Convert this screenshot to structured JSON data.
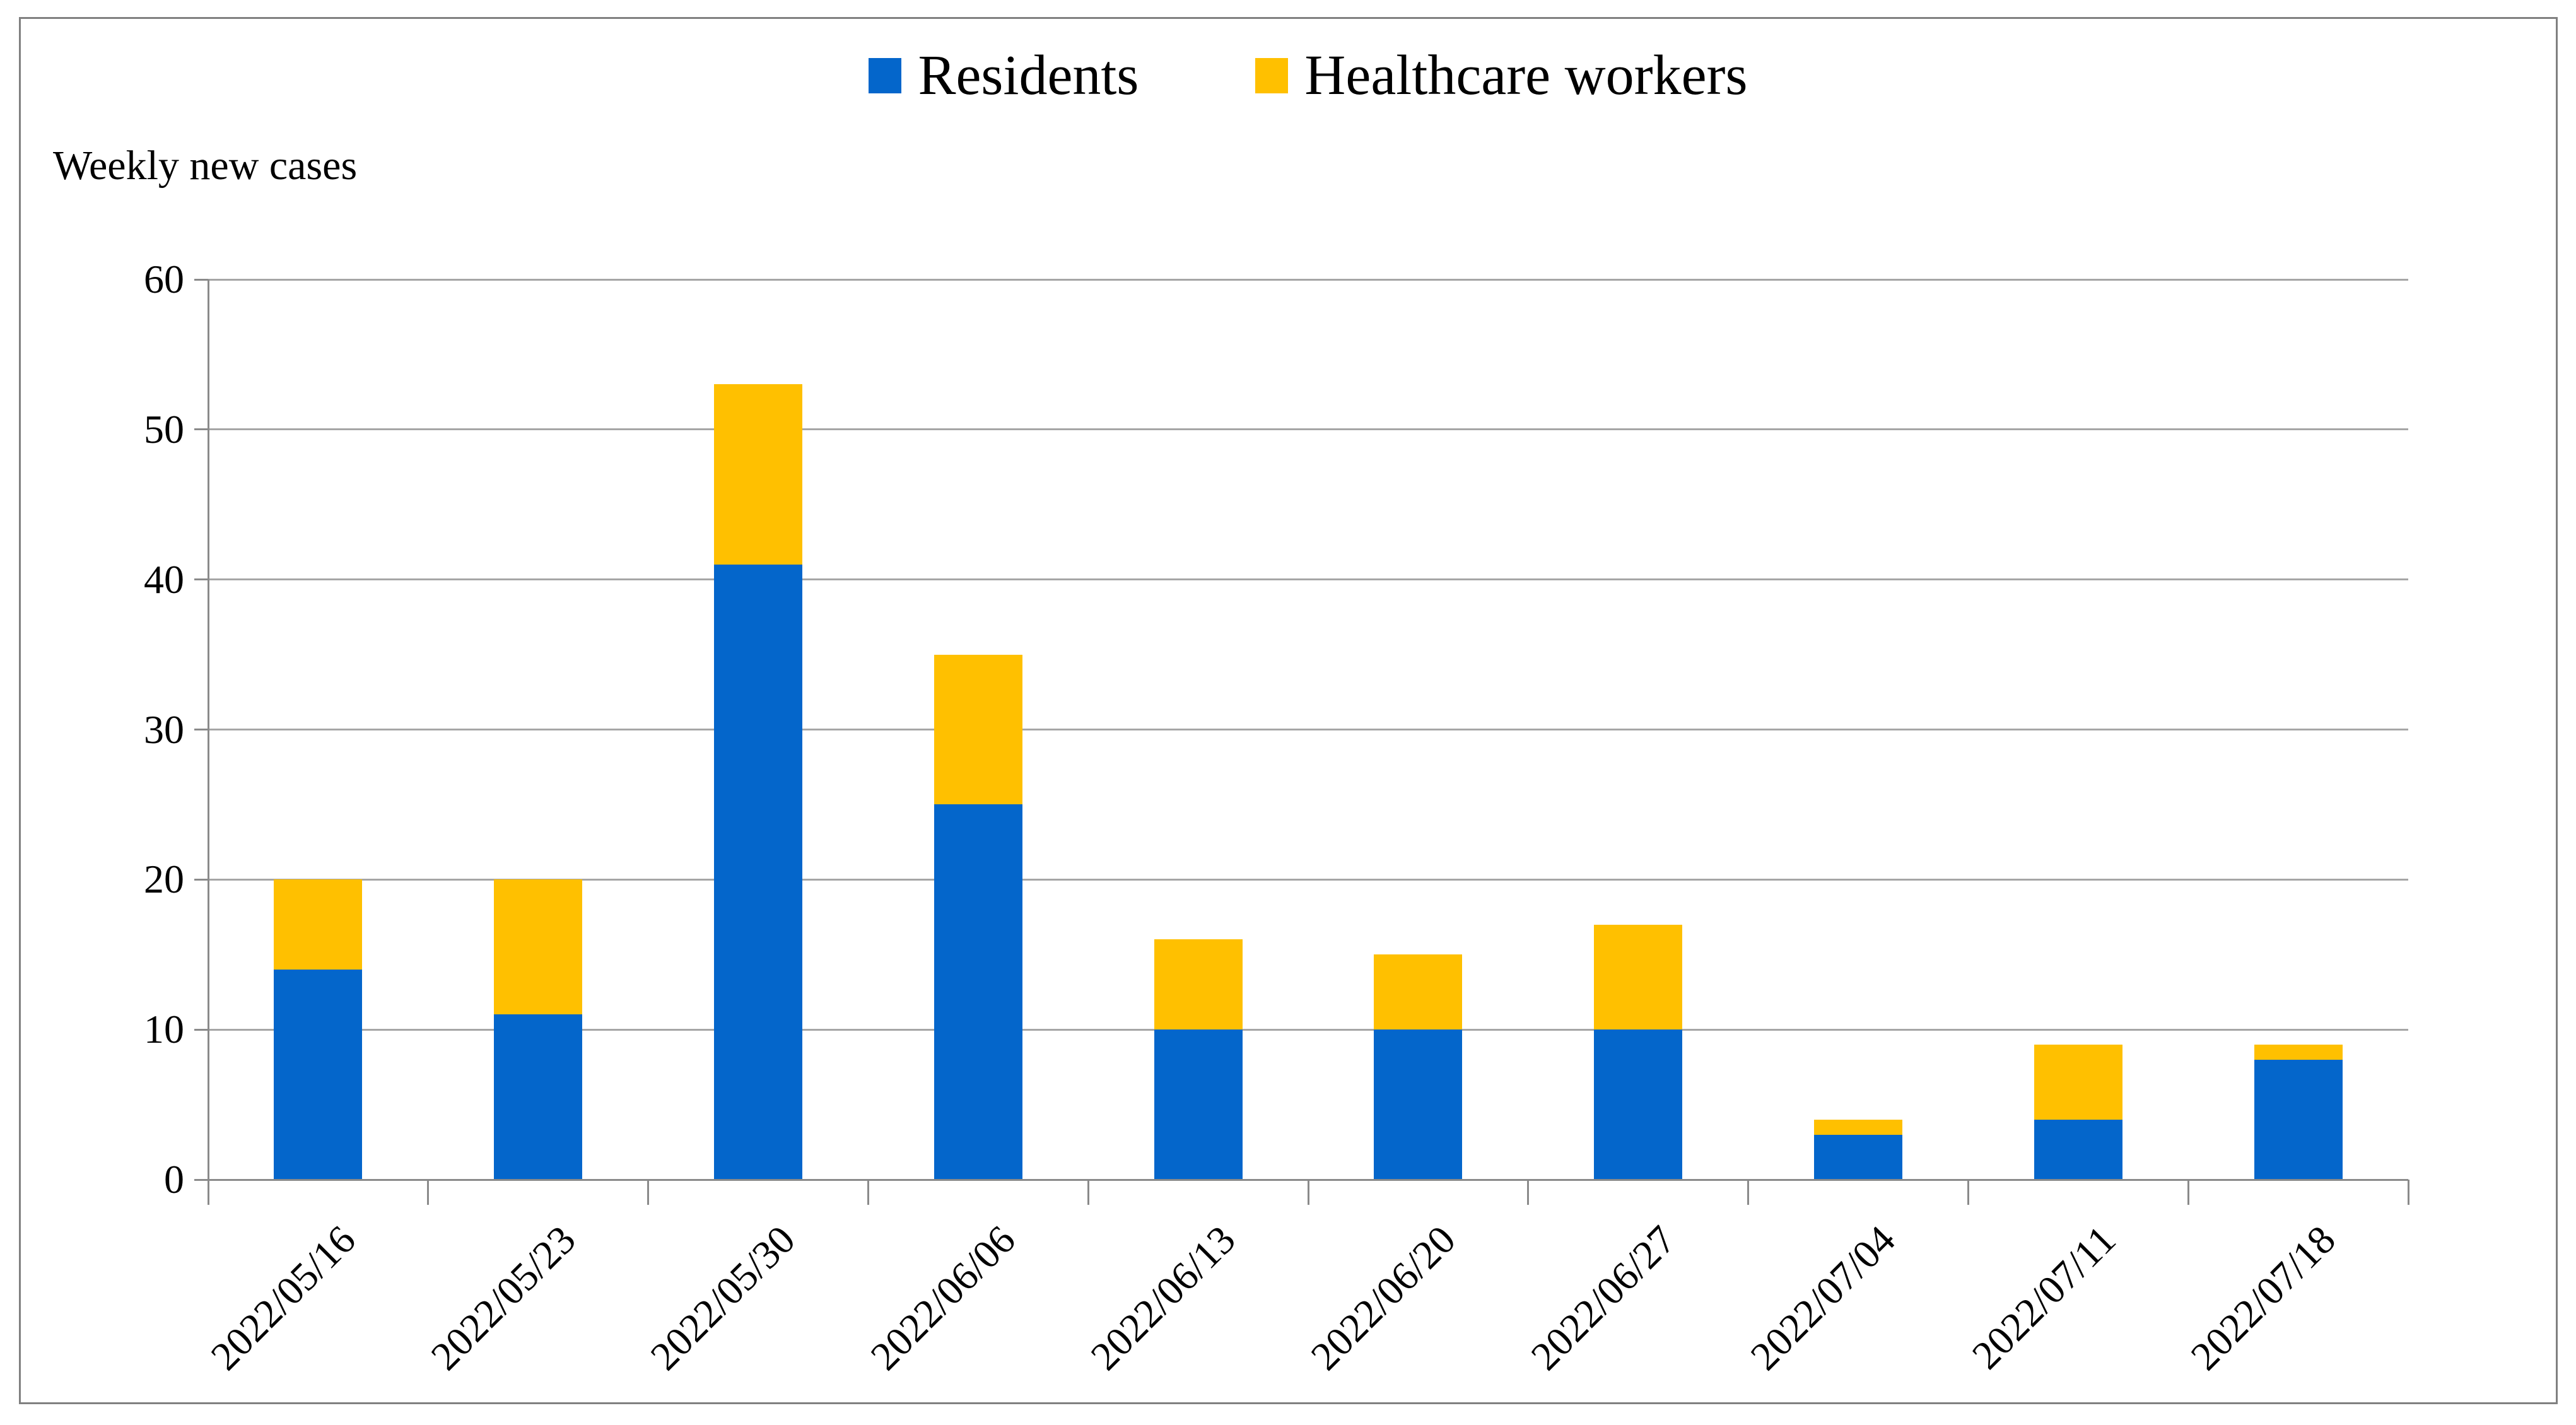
{
  "chart_data": {
    "type": "bar",
    "stacked": true,
    "axis_title": "Weekly new cases",
    "categories": [
      "2022/05/16",
      "2022/05/23",
      "2022/05/30",
      "2022/06/06",
      "2022/06/13",
      "2022/06/20",
      "2022/06/27",
      "2022/07/04",
      "2022/07/11",
      "2022/07/18"
    ],
    "series": [
      {
        "name": "Residents",
        "color": "#0466CB",
        "values": [
          14,
          11,
          41,
          25,
          10,
          10,
          10,
          3,
          4,
          8
        ]
      },
      {
        "name": "Healthcare workers",
        "color": "#FFC000",
        "values": [
          6,
          9,
          12,
          10,
          6,
          5,
          7,
          1,
          5,
          1
        ]
      }
    ],
    "stacked_totals": [
      20,
      20,
      53,
      35,
      16,
      15,
      17,
      4,
      9,
      9
    ],
    "ylim": [
      0,
      60
    ],
    "ytick_labels": [
      "0",
      "10",
      "20",
      "30",
      "40",
      "50",
      "60"
    ],
    "grid": true,
    "legend_position": "top-center"
  },
  "styles": {
    "grid_color": "#A6A6A6",
    "axis_color": "#8A8A8A",
    "frame_border_color": "#808080",
    "background": "#FFFFFF",
    "text_color": "#000000"
  }
}
